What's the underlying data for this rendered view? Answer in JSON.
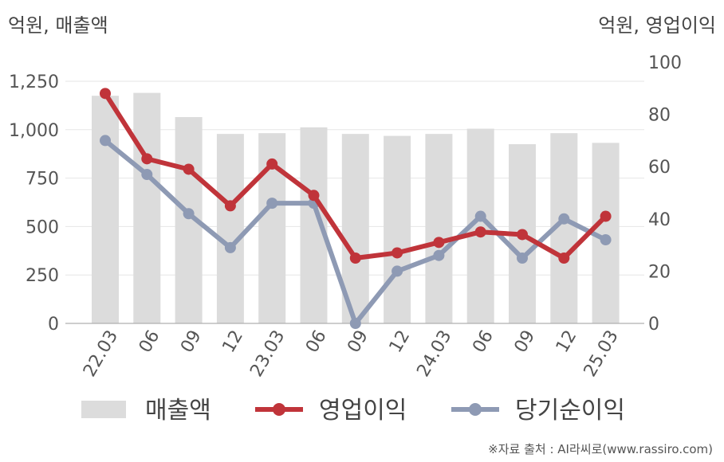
{
  "units": {
    "left": "억원, 매출액",
    "right": "억원, 영업이익"
  },
  "source": "※자료 출처 : AI라씨로(www.rassiro.com)",
  "colors": {
    "revenue": "#dcdcdc",
    "op_income": "#c0343a",
    "net_income": "#8e9ab4",
    "grid": "#e6e6e6",
    "axis": "#b0b0b0"
  },
  "chart_data": {
    "type": "bar",
    "categories": [
      "22.03",
      "06",
      "09",
      "12",
      "23.03",
      "06",
      "09",
      "12",
      "24.03",
      "06",
      "09",
      "12",
      "25.03"
    ],
    "left_axis": {
      "ylim": [
        0,
        1250
      ],
      "ticks": [
        "0",
        "250",
        "500",
        "750",
        "1,000",
        "1,250"
      ],
      "tick_values": [
        0,
        250,
        500,
        750,
        1000,
        1250
      ]
    },
    "right_axis": {
      "ylim": [
        0,
        100
      ],
      "ticks": [
        "0",
        "20",
        "40",
        "60",
        "80",
        "100"
      ],
      "tick_values": [
        0,
        20,
        40,
        60,
        80,
        100
      ]
    },
    "series": [
      {
        "name": "매출액",
        "type": "bar",
        "axis": "left",
        "values": [
          1175,
          1190,
          1065,
          978,
          982,
          1012,
          978,
          968,
          978,
          1005,
          925,
          982,
          932
        ]
      },
      {
        "name": "영업이익",
        "type": "line",
        "axis": "right",
        "values": [
          88,
          63,
          59,
          45,
          61,
          49,
          25,
          27,
          31,
          35,
          34,
          25,
          41
        ]
      },
      {
        "name": "당기순이익",
        "type": "line",
        "axis": "right",
        "values": [
          70,
          57,
          42,
          29,
          46,
          46,
          0,
          20,
          26,
          41,
          25,
          40,
          32
        ]
      }
    ],
    "grid": true,
    "legend": "bottom"
  }
}
